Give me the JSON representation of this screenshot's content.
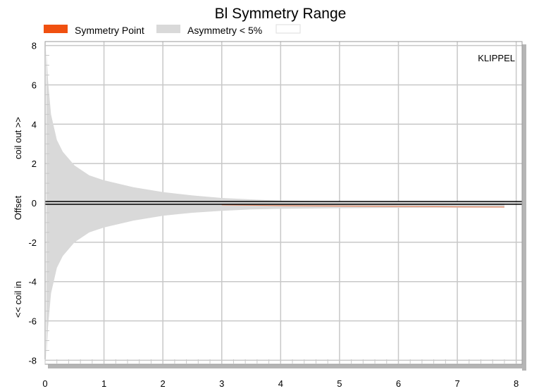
{
  "chart_data": {
    "type": "area",
    "title": "Bl Symmetry Range",
    "watermark": "KLIPPEL",
    "legend": [
      {
        "name": "Symmetry Point",
        "color": "#f05010"
      },
      {
        "name": "Asymmetry < 5%",
        "color": "#d9d9d9"
      }
    ],
    "ylabel_parts": [
      "<< coil in",
      "Offset",
      "coil out >>"
    ],
    "xlim": [
      0,
      8.1
    ],
    "ylim": [
      -8.2,
      8.2
    ],
    "xticks": [
      0,
      1,
      2,
      3,
      4,
      5,
      6,
      7,
      8
    ],
    "yticks": [
      -8,
      -6,
      -4,
      -2,
      0,
      2,
      4,
      6,
      8
    ],
    "grid": true,
    "colors": {
      "grid": "#c8c8c8",
      "band": "#d9d9d9",
      "symmetry": "#f05010",
      "zero": "#000000"
    },
    "series": [
      {
        "name": "Asymmetry < 5%",
        "x": [
          0.02,
          0.05,
          0.1,
          0.2,
          0.3,
          0.5,
          0.75,
          1.0,
          1.5,
          2.0,
          2.5,
          3.0,
          3.5,
          4.0,
          5.0,
          6.0,
          7.0,
          7.8
        ],
        "upper": [
          7.8,
          6.2,
          4.5,
          3.2,
          2.6,
          1.9,
          1.4,
          1.15,
          0.8,
          0.55,
          0.38,
          0.25,
          0.18,
          0.12,
          0.08,
          0.06,
          0.05,
          0.05
        ],
        "lower": [
          -7.9,
          -6.3,
          -4.6,
          -3.3,
          -2.7,
          -2.0,
          -1.5,
          -1.25,
          -0.9,
          -0.65,
          -0.5,
          -0.4,
          -0.33,
          -0.3,
          -0.27,
          -0.25,
          -0.24,
          -0.24
        ]
      },
      {
        "name": "Symmetry Point",
        "x": [
          3.0,
          4.0,
          5.0,
          6.0,
          7.0,
          7.8
        ],
        "y": [
          -0.1,
          -0.14,
          -0.16,
          -0.18,
          -0.2,
          -0.21
        ]
      }
    ]
  }
}
